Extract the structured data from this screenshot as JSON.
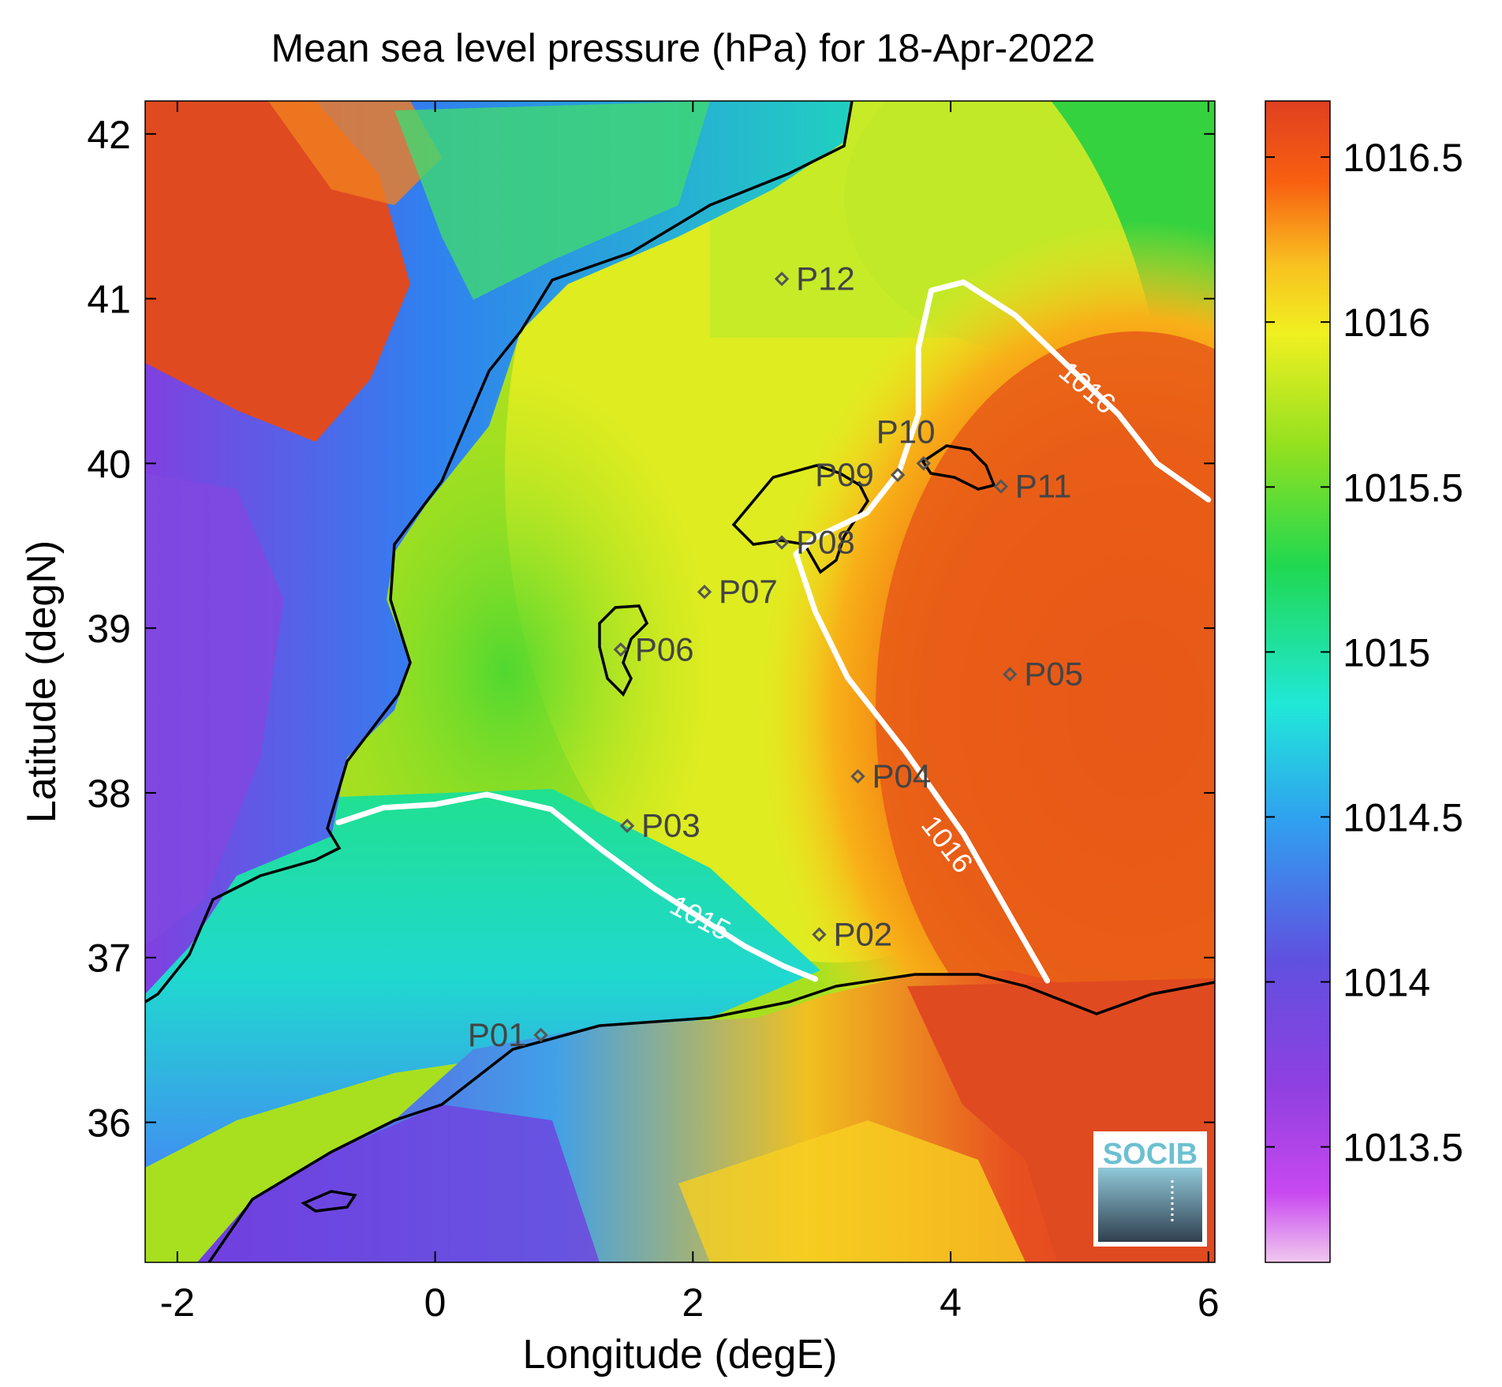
{
  "title": "Mean sea level pressure (hPa) for 18-Apr-2022",
  "map": {
    "xlabel": "Longitude (degE)",
    "ylabel": "Latitude (degN)",
    "xlim": [
      -2.25,
      6.05
    ],
    "ylim": [
      35.15,
      42.2
    ],
    "xticks": [
      -2,
      0,
      2,
      4,
      6
    ],
    "yticks": [
      36,
      37,
      38,
      39,
      40,
      41,
      42
    ],
    "points": [
      {
        "label": "P01",
        "lon": 0.82,
        "lat": 36.53
      },
      {
        "label": "P02",
        "lon": 2.98,
        "lat": 37.14
      },
      {
        "label": "P03",
        "lon": 1.49,
        "lat": 37.8
      },
      {
        "label": "P04",
        "lon": 3.28,
        "lat": 38.1
      },
      {
        "label": "P05",
        "lon": 4.46,
        "lat": 38.72
      },
      {
        "label": "P06",
        "lon": 1.44,
        "lat": 38.87
      },
      {
        "label": "P07",
        "lon": 2.09,
        "lat": 39.22
      },
      {
        "label": "P08",
        "lon": 2.69,
        "lat": 39.52
      },
      {
        "label": "P09",
        "lon": 3.59,
        "lat": 39.93
      },
      {
        "label": "P10",
        "lon": 3.79,
        "lat": 40.0
      },
      {
        "label": "P11",
        "lon": 4.39,
        "lat": 39.86
      },
      {
        "label": "P12",
        "lon": 2.69,
        "lat": 41.12
      }
    ],
    "contours": [
      {
        "level_label": "1015",
        "path": [
          [
            -0.75,
            37.82
          ],
          [
            -0.4,
            37.91
          ],
          [
            0.0,
            37.93
          ],
          [
            0.4,
            37.99
          ],
          [
            0.9,
            37.9
          ],
          [
            1.3,
            37.65
          ],
          [
            1.7,
            37.42
          ],
          [
            2.1,
            37.22
          ],
          [
            2.4,
            37.07
          ],
          [
            2.7,
            36.95
          ],
          [
            2.95,
            36.87
          ]
        ]
      },
      {
        "level_label": "1016",
        "path": [
          [
            4.75,
            36.86
          ],
          [
            4.5,
            37.2
          ],
          [
            4.1,
            37.75
          ],
          [
            3.65,
            38.25
          ],
          [
            3.2,
            38.7
          ],
          [
            2.95,
            39.1
          ],
          [
            2.8,
            39.45
          ],
          [
            2.95,
            39.55
          ],
          [
            3.35,
            39.7
          ],
          [
            3.6,
            39.95
          ],
          [
            3.75,
            40.3
          ],
          [
            3.75,
            40.7
          ],
          [
            3.85,
            41.05
          ],
          [
            4.1,
            41.1
          ],
          [
            4.5,
            40.9
          ],
          [
            4.9,
            40.6
          ],
          [
            5.3,
            40.3
          ],
          [
            5.6,
            40.0
          ],
          [
            6.0,
            39.78
          ]
        ]
      }
    ],
    "contour_labels": [
      {
        "text": "1015",
        "lon": 2.05,
        "lat": 37.23,
        "angle": 28
      },
      {
        "text": "1016",
        "lon": 3.96,
        "lat": 37.68,
        "angle": 52
      },
      {
        "text": "1016",
        "lon": 5.05,
        "lat": 40.45,
        "angle": 40
      }
    ],
    "logo_text": "SOCIB"
  },
  "colorbar": {
    "range": [
      1013.15,
      1016.67
    ],
    "ticks": [
      1013.5,
      1014,
      1014.5,
      1015,
      1015.5,
      1016,
      1016.5
    ]
  },
  "colors": {
    "background": "#ffffff",
    "coastline": "#000000",
    "contour": "#ffffff",
    "point_marker": "#555555",
    "logo_text": "#6cc0d0"
  }
}
